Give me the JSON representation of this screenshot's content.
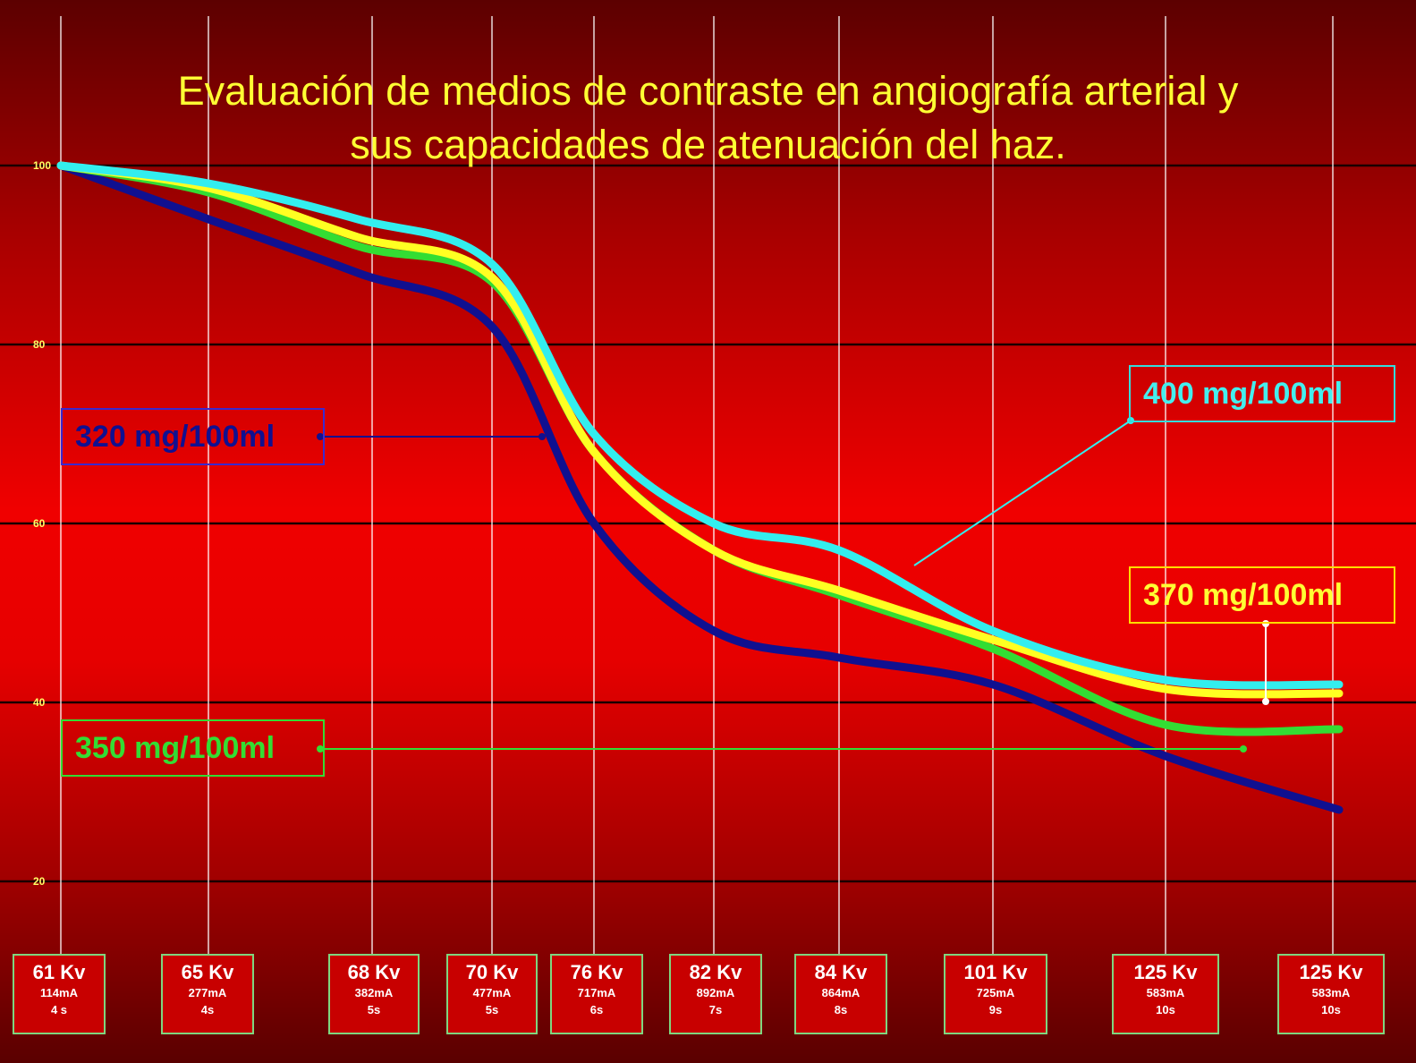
{
  "title_line1": "Evaluación de medios de contraste en angiografía arterial y",
  "title_line2": "sus capacidades de atenuación del haz.",
  "colors": {
    "c320": "#101090",
    "c350": "#33dd33",
    "c370": "#ffff22",
    "c400": "#33eeee",
    "title": "#ffff33",
    "grid": "#1a0000"
  },
  "chart_data": {
    "type": "line",
    "title": "Evaluación de medios de contraste en angiografía arterial y sus capacidades de atenuación del haz.",
    "xlabel": "",
    "ylabel": "",
    "ylim": [
      20,
      100
    ],
    "yticks": [
      "100",
      "80",
      "60",
      "40",
      "20"
    ],
    "grid": true,
    "categories": [
      {
        "kv": "61 Kv",
        "ma": "114mA",
        "s": "4 s"
      },
      {
        "kv": "65 Kv",
        "ma": "277mA",
        "s": "4s"
      },
      {
        "kv": "68 Kv",
        "ma": "382mA",
        "s": "5s"
      },
      {
        "kv": "70 Kv",
        "ma": "477mA",
        "s": "5s"
      },
      {
        "kv": "76 Kv",
        "ma": "717mA",
        "s": "6s"
      },
      {
        "kv": "82 Kv",
        "ma": "892mA",
        "s": "7s"
      },
      {
        "kv": "84 Kv",
        "ma": "864mA",
        "s": "8s"
      },
      {
        "kv": "101 Kv",
        "ma": "725mA",
        "s": "9s"
      },
      {
        "kv": "125 Kv",
        "ma": "583mA",
        "s": "10s"
      },
      {
        "kv": "125 Kv",
        "ma": "583mA",
        "s": "10s"
      }
    ],
    "series": [
      {
        "name": "320 mg/100ml",
        "values": [
          100,
          94,
          88,
          82,
          60,
          48,
          45,
          42,
          34,
          28
        ]
      },
      {
        "name": "350 mg/100ml",
        "values": [
          100,
          97,
          91,
          87,
          68,
          57,
          52,
          46,
          37.5,
          37
        ]
      },
      {
        "name": "370 mg/100ml",
        "values": [
          100,
          97.5,
          92,
          87.5,
          68,
          57,
          52.5,
          47,
          41.5,
          41
        ]
      },
      {
        "name": "400 mg/100ml",
        "values": [
          100,
          98,
          94,
          89,
          70,
          60,
          57,
          48,
          42.5,
          42
        ]
      }
    ]
  }
}
